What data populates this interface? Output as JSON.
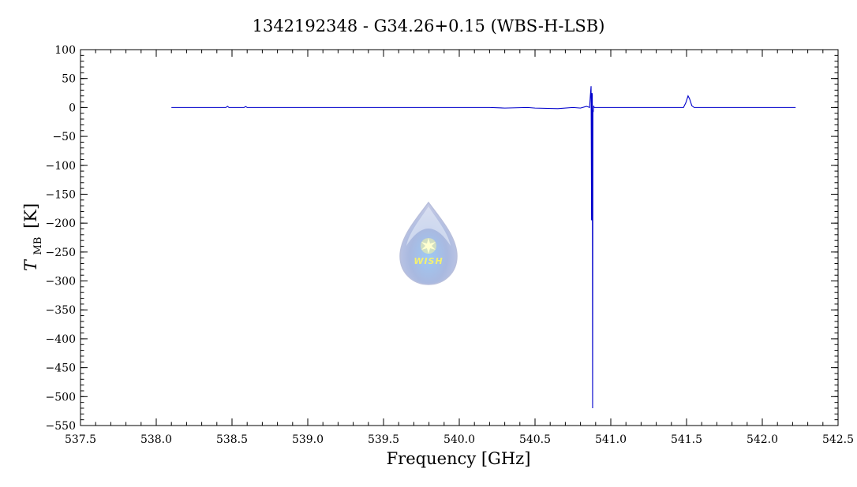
{
  "chart_data": {
    "type": "line",
    "title": "1342192348 - G34.26+0.15 (WBS-H-LSB)",
    "xlabel": "Frequency [GHz]",
    "ylabel_main": "T",
    "ylabel_sub": "MB",
    "ylabel_unit": "[K]",
    "xlim": [
      537.5,
      542.5
    ],
    "ylim": [
      -550,
      100
    ],
    "xticks": [
      537.5,
      538.0,
      538.5,
      539.0,
      539.5,
      540.0,
      540.5,
      541.0,
      541.5,
      542.0,
      542.5
    ],
    "xtick_labels": [
      "537.5",
      "538.0",
      "538.5",
      "539.0",
      "539.5",
      "540.0",
      "540.5",
      "541.0",
      "541.5",
      "542.0",
      "542.5"
    ],
    "yticks": [
      100,
      50,
      0,
      -50,
      -100,
      -150,
      -200,
      -250,
      -300,
      -350,
      -400,
      -450,
      -500,
      -550
    ],
    "ytick_labels": [
      "100",
      "50",
      "0",
      "−50",
      "−100",
      "−150",
      "−200",
      "−250",
      "−300",
      "−350",
      "−400",
      "−450",
      "−500",
      "−550"
    ],
    "grid": false,
    "series": [
      {
        "color": "#0000cc",
        "x": [
          538.1,
          538.46,
          538.47,
          538.48,
          538.58,
          538.59,
          538.6,
          540.2,
          540.3,
          540.45,
          540.5,
          540.65,
          540.75,
          540.8,
          540.84,
          540.86,
          540.865,
          540.87,
          540.873,
          540.876,
          540.878,
          540.88,
          540.882,
          540.884,
          540.887,
          540.89,
          540.9,
          541.0,
          541.48,
          541.495,
          541.51,
          541.52,
          541.535,
          541.55,
          542.22
        ],
        "y": [
          0,
          0,
          2,
          0,
          0,
          1.5,
          0,
          0,
          -1,
          0,
          -1,
          -2,
          0,
          -1,
          2,
          0,
          20,
          37,
          -195,
          25,
          22,
          -520,
          -5,
          -8,
          3,
          0,
          0,
          0,
          0,
          8,
          20,
          15,
          3,
          0,
          0
        ]
      }
    ],
    "watermark_text": "WISH"
  }
}
